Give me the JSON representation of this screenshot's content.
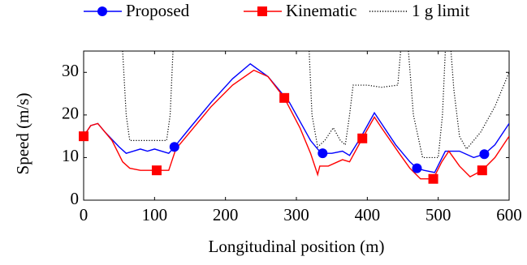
{
  "chart_data": {
    "type": "line",
    "xlabel": "Longitudinal position (m)",
    "ylabel": "Speed (m/s)",
    "xlim": [
      0,
      600
    ],
    "ylim": [
      0,
      35
    ],
    "xticks": [
      0,
      100,
      200,
      300,
      400,
      500,
      600
    ],
    "yticks": [
      0,
      10,
      20,
      30
    ],
    "grid": false,
    "legend": "top",
    "series": [
      {
        "name": "Proposed",
        "color": "#0000ff",
        "style": "solid",
        "marker": "circle",
        "x": [
          0,
          10,
          20,
          30,
          50,
          60,
          70,
          80,
          90,
          100,
          110,
          120,
          128,
          150,
          180,
          210,
          235,
          260,
          290,
          320,
          335,
          350,
          365,
          375,
          390,
          410,
          420,
          440,
          460,
          470,
          480,
          495,
          510,
          530,
          550,
          565,
          580,
          600
        ],
        "values": [
          15,
          17.5,
          18,
          16,
          12.5,
          11,
          11.5,
          12,
          11.5,
          12,
          11.5,
          11,
          12.5,
          17,
          23,
          28.5,
          32,
          29,
          23,
          14,
          11,
          11,
          11.5,
          10.5,
          14.5,
          20.5,
          18,
          13,
          9,
          7.5,
          7,
          6.5,
          11.5,
          11.5,
          10,
          10.8,
          13,
          18
        ],
        "markers": {
          "x": [
            128,
            337,
            470,
            565
          ],
          "values": [
            12.5,
            11,
            7.5,
            10.8
          ]
        }
      },
      {
        "name": "Kinematic",
        "color": "#ff0000",
        "style": "solid",
        "marker": "square",
        "x": [
          0,
          10,
          20,
          40,
          55,
          65,
          80,
          103,
          120,
          130,
          150,
          180,
          210,
          240,
          260,
          283,
          305,
          320,
          330,
          333,
          345,
          365,
          375,
          393,
          410,
          420,
          445,
          460,
          475,
          493,
          505,
          515,
          530,
          545,
          562,
          580,
          600
        ],
        "values": [
          15,
          17.5,
          18,
          14,
          9,
          7.5,
          7,
          7,
          7,
          12,
          16,
          22,
          27,
          30.5,
          29,
          24,
          17,
          11,
          6,
          8,
          8,
          9.5,
          9,
          14.5,
          19.5,
          17,
          11,
          7.5,
          5,
          5,
          9,
          11.5,
          8,
          5.5,
          7,
          10,
          15
        ],
        "markers": {
          "x": [
            0,
            103,
            283,
            393,
            493,
            562
          ],
          "values": [
            15,
            7,
            24,
            14.5,
            5,
            7
          ]
        }
      },
      {
        "name": "1 g limit",
        "color": "#000000",
        "style": "dotted",
        "marker": "none",
        "x": [
          55,
          60,
          65,
          80,
          100,
          117,
          122,
          126,
          200,
          318,
          322,
          330,
          340,
          352,
          362,
          369,
          375,
          380,
          400,
          420,
          443,
          447,
          450,
          458,
          465,
          478,
          490,
          500,
          506,
          510,
          514,
          518,
          522,
          530,
          540,
          560,
          580,
          600
        ],
        "values": [
          35,
          20,
          14,
          14,
          14,
          14,
          20,
          35,
          null,
          35,
          20,
          12.5,
          14,
          17,
          14,
          13,
          20,
          27,
          27,
          26.5,
          27,
          35,
          null,
          35,
          20,
          10,
          10,
          10,
          20,
          35,
          null,
          35,
          26,
          15,
          12,
          16,
          22,
          30
        ]
      }
    ]
  }
}
